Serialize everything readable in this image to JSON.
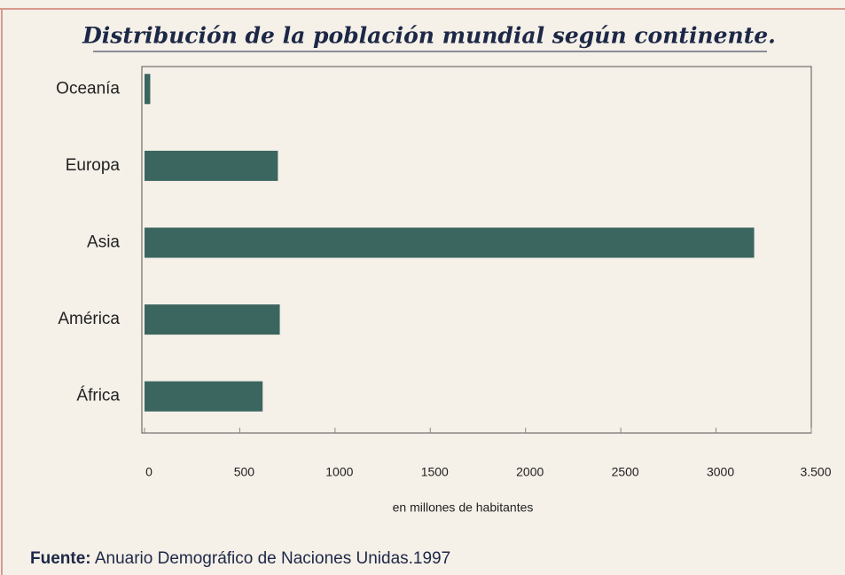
{
  "chart_data": {
    "type": "bar",
    "orientation": "horizontal",
    "title": "Distribución de la población mundial según continente.",
    "categories": [
      "Oceanía",
      "Europa",
      "Asia",
      "América",
      "África"
    ],
    "values": [
      30,
      700,
      3200,
      710,
      620
    ],
    "color": "#3b6660",
    "xlim": [
      0,
      3500
    ],
    "xticks": [
      0,
      500,
      1000,
      1500,
      2000,
      2500,
      3000,
      {
        "value": 3500,
        "label": "3.500"
      }
    ],
    "xlabel": "en millones de habitantes",
    "source": {
      "label": "Fuente:",
      "text": "Anuario Demográfico de Naciones Unidas.1997"
    }
  }
}
